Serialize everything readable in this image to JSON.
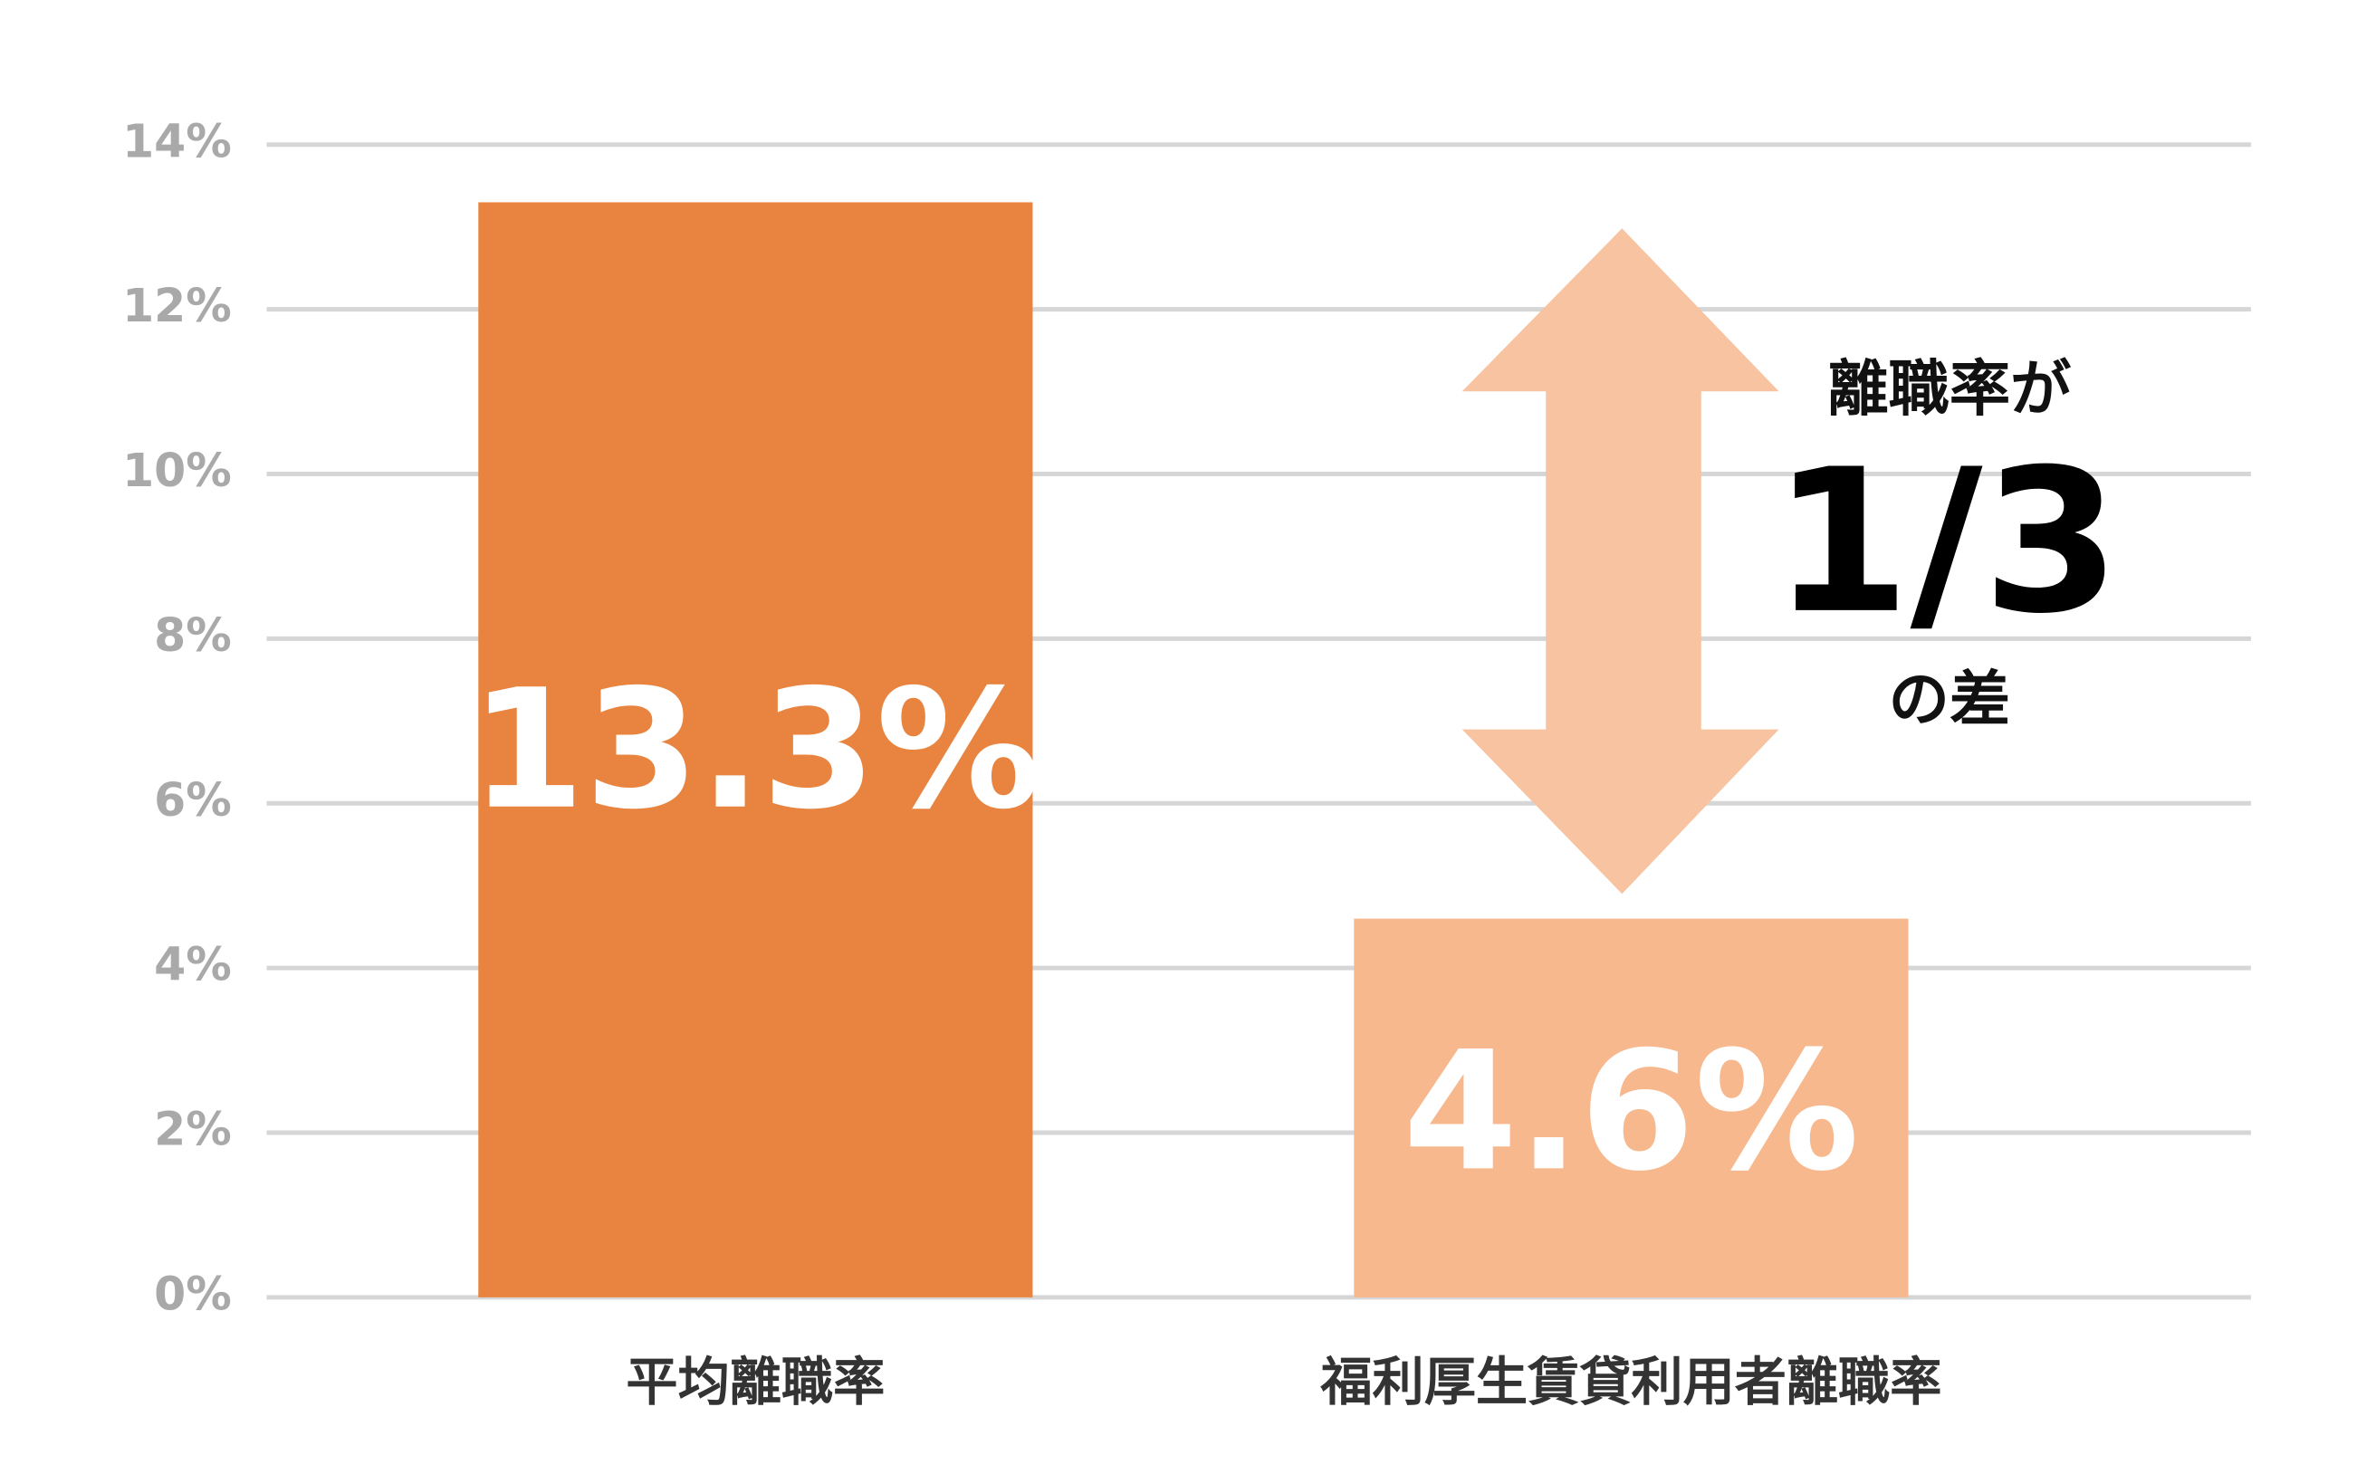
{
  "chart_data": {
    "type": "bar",
    "categories": [
      "平均離職率",
      "福利厚生賃貸利用者離職率"
    ],
    "values": [
      13.3,
      4.6
    ],
    "value_labels": [
      "13.3%",
      "4.6%"
    ],
    "colors": [
      "#e8843f",
      "#f7b88e"
    ],
    "ylim": [
      0,
      14
    ],
    "yticks": [
      {
        "value": 0,
        "label": "0%"
      },
      {
        "value": 2,
        "label": "2%"
      },
      {
        "value": 4,
        "label": "4%"
      },
      {
        "value": 6,
        "label": "6%"
      },
      {
        "value": 8,
        "label": "8%"
      },
      {
        "value": 10,
        "label": "10%"
      },
      {
        "value": 12,
        "label": "12%"
      },
      {
        "value": 14,
        "label": "14%"
      }
    ],
    "grid": true,
    "annotations": [
      "離職率が",
      "1/3",
      "の差"
    ]
  }
}
